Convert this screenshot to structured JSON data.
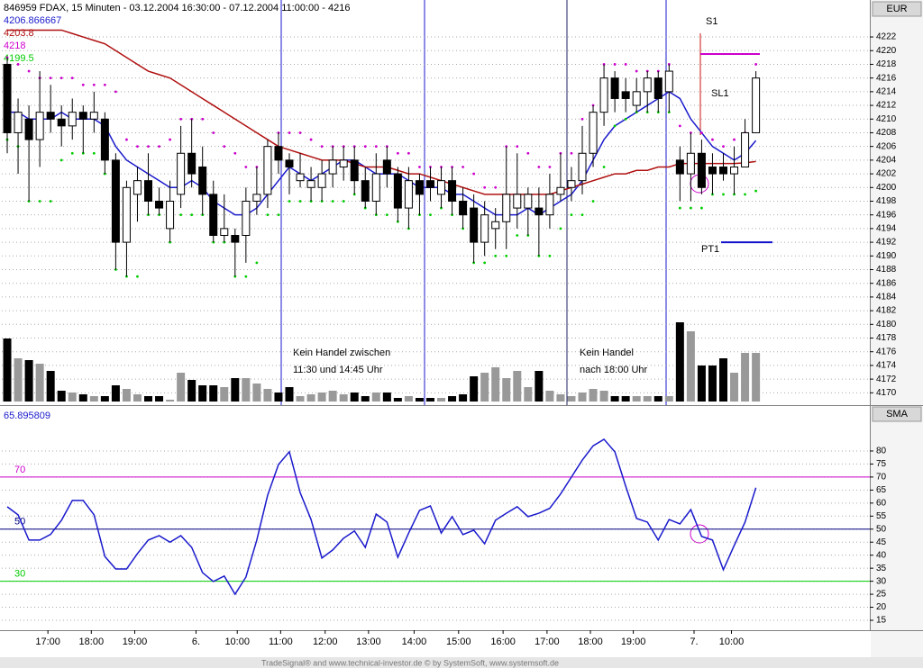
{
  "chart_data": [
    {
      "type": "candlestick",
      "title": "846959  FDAX, 15 Minuten - 03.12.2004 16:30:00 - 07.12.2004 11:00:00 - 4216",
      "y_axis_label": "EUR",
      "xlim": [
        -0.5,
        79.5
      ],
      "xticks": [
        {
          "value": 3.75,
          "label": "17:00"
        },
        {
          "value": 7.75,
          "label": "18:00"
        },
        {
          "value": 11.75,
          "label": "19:00"
        },
        {
          "value": 17.4,
          "label": "6."
        },
        {
          "value": 21.2,
          "label": "10:00"
        },
        {
          "value": 25.2,
          "label": "11:00"
        },
        {
          "value": 29.3,
          "label": "12:00"
        },
        {
          "value": 33.3,
          "label": "13:00"
        },
        {
          "value": 37.5,
          "label": "14:00"
        },
        {
          "value": 41.6,
          "label": "15:00"
        },
        {
          "value": 45.7,
          "label": "16:00"
        },
        {
          "value": 49.75,
          "label": "17:00"
        },
        {
          "value": 53.75,
          "label": "18:00"
        },
        {
          "value": 57.7,
          "label": "19:00"
        },
        {
          "value": 63.3,
          "label": "7."
        },
        {
          "value": 66.75,
          "label": "10:00"
        }
      ],
      "ylim": [
        4168.2,
        4227.4
      ],
      "yticks": [
        4170,
        4172,
        4174,
        4176,
        4178,
        4180,
        4182,
        4184,
        4186,
        4188,
        4190,
        4192,
        4194,
        4196,
        4198,
        4200,
        4202,
        4204,
        4206,
        4208,
        4210,
        4212,
        4214,
        4216,
        4218,
        4220,
        4222
      ],
      "grid": true,
      "open": [
        4218,
        4208,
        4210,
        4207,
        4211,
        4210,
        4209,
        4211,
        4210,
        4210,
        4204,
        4192,
        4199,
        4201,
        4198,
        4194,
        4199,
        4205,
        4203,
        4199,
        4193,
        4193,
        4193,
        4198,
        4199,
        4206,
        4204,
        4201,
        4200,
        4200,
        4202,
        4203,
        4204,
        4201,
        4198,
        4204,
        4202,
        4197,
        4201,
        4201,
        4199,
        4201,
        4198,
        4197,
        4192,
        4194,
        4195,
        4197,
        4197,
        4197,
        4196,
        4199,
        4200,
        4201,
        4205,
        4211,
        4216,
        4214,
        4212,
        4214,
        4216,
        4214,
        4204,
        4202,
        4205,
        4203,
        4203,
        4202,
        4203,
        4208
      ],
      "high": [
        4219,
        4213,
        4212,
        4217,
        4215,
        4212,
        4213,
        4212,
        4214,
        4211,
        4205,
        4201,
        4203,
        4205,
        4200,
        4201,
        4209,
        4210,
        4206,
        4201,
        4199,
        4194,
        4200,
        4203,
        4207,
        4208,
        4205,
        4205,
        4203,
        4204,
        4206,
        4206,
        4206,
        4203,
        4205,
        4206,
        4203,
        4203,
        4202,
        4203,
        4203,
        4203,
        4200,
        4199,
        4198,
        4197,
        4206,
        4205,
        4200,
        4200,
        4202,
        4205,
        4203,
        4209,
        4212,
        4218,
        4217,
        4216,
        4216,
        4217,
        4217,
        4218,
        4206,
        4208,
        4207,
        4205,
        4205,
        4206,
        4210,
        4217
      ],
      "low": [
        4205,
        4202,
        4198,
        4203,
        4208,
        4206,
        4207,
        4205,
        4208,
        4202,
        4188,
        4187,
        4195,
        4196,
        4196,
        4192,
        4197,
        4200,
        4196,
        4192,
        4192,
        4187,
        4189,
        4196,
        4197,
        4202,
        4199,
        4200,
        4198,
        4198,
        4200,
        4201,
        4199,
        4197,
        4196,
        4200,
        4195,
        4194,
        4196,
        4198,
        4197,
        4196,
        4194,
        4189,
        4190,
        4191,
        4191,
        4194,
        4193,
        4190,
        4194,
        4198,
        4198,
        4199,
        4203,
        4209,
        4211,
        4211,
        4211,
        4211,
        4211,
        4211,
        4198,
        4198,
        4199,
        4199,
        4201,
        4199,
        4203,
        4208
      ],
      "close": [
        4208,
        4211,
        4207,
        4211,
        4210,
        4209,
        4211,
        4210,
        4211,
        4204,
        4192,
        4200,
        4201,
        4198,
        4197,
        4198,
        4205,
        4202,
        4199,
        4193,
        4194,
        4192,
        4198,
        4199,
        4206,
        4204,
        4203,
        4202,
        4201,
        4202,
        4204,
        4204,
        4201,
        4198,
        4202,
        4202,
        4197,
        4201,
        4199,
        4200,
        4201,
        4198,
        4196,
        4192,
        4196,
        4195,
        4199,
        4199,
        4199,
        4196,
        4199,
        4200,
        4201,
        4205,
        4211,
        4216,
        4213,
        4213,
        4214,
        4216,
        4213,
        4217,
        4202,
        4205,
        4200,
        4202,
        4202,
        4203,
        4208,
        4216
      ],
      "up_color": "#ffffff",
      "down_color": "#000000",
      "volume": [
        70,
        48,
        46,
        42,
        34,
        12,
        10,
        8,
        6,
        6,
        18,
        14,
        8,
        6,
        6,
        2,
        32,
        24,
        18,
        18,
        16,
        26,
        26,
        20,
        14,
        10,
        16,
        6,
        8,
        10,
        12,
        8,
        10,
        6,
        10,
        10,
        4,
        6,
        4,
        4,
        4,
        6,
        8,
        28,
        32,
        38,
        26,
        34,
        16,
        34,
        12,
        8,
        6,
        10,
        14,
        12,
        6,
        6,
        6,
        6,
        6,
        6,
        88,
        78,
        40,
        40,
        48,
        32,
        54,
        54
      ],
      "vlim": [
        0,
        100
      ],
      "volume_up_color": "#999999",
      "volume_down_color": "#000000",
      "series": [
        {
          "color": "#1a1acc",
          "style": "line",
          "values": [
            4211,
            4211,
            4210,
            4210,
            4210,
            4211,
            4210,
            4210,
            4210,
            4209,
            4206,
            4204,
            4203,
            4202,
            4201,
            4200,
            4200,
            4201,
            4200,
            4198,
            4197,
            4196,
            4196,
            4197,
            4199,
            4201,
            4203,
            4202,
            4201,
            4202,
            4203,
            4204,
            4204,
            4203,
            4202,
            4202,
            4202,
            4201,
            4200,
            4200,
            4200,
            4199,
            4199,
            4198,
            4197,
            4196,
            4196,
            4196,
            4197,
            4196,
            4197,
            4198,
            4199,
            4201,
            4204,
            4207,
            4209,
            4210,
            4211,
            4212,
            4213,
            4214,
            4213,
            4210,
            4208,
            4206,
            4205,
            4204,
            4205,
            4206.866667
          ]
        },
        {
          "color": "#b01010",
          "style": "line",
          "values": [
            4223,
            4223,
            4223,
            4223,
            4223,
            4223,
            4222.5,
            4222,
            4221.5,
            4221,
            4220,
            4219,
            4218,
            4217,
            4216.5,
            4216,
            4215,
            4214,
            4213,
            4212,
            4211,
            4210,
            4209,
            4208,
            4207,
            4206,
            4205.5,
            4205,
            4204.5,
            4204,
            4204,
            4204,
            4203.5,
            4203,
            4203,
            4203,
            4202.5,
            4202,
            4202,
            4201.5,
            4201,
            4200.5,
            4200,
            4199.5,
            4199,
            4199,
            4199,
            4199,
            4199,
            4199,
            4199,
            4199.5,
            4200,
            4200.5,
            4201,
            4201.5,
            4202,
            4202,
            4202.5,
            4202.5,
            4203,
            4203,
            4203.5,
            4203.5,
            4203.5,
            4203.5,
            4203.5,
            4203.5,
            4203.6,
            4203.8
          ]
        },
        {
          "color": "#cc00cc",
          "style": "dots",
          "values": [
            4219,
            4218,
            4217,
            4216,
            4216,
            4216,
            4216,
            4215,
            4215,
            4215,
            4214,
            4207,
            4206,
            4206,
            4206,
            4207,
            4210,
            4210,
            4210,
            4208,
            4206,
            4205,
            4203,
            4203,
            4205,
            4208,
            4208,
            4208,
            4207,
            4206,
            4206,
            4206,
            4206,
            4206,
            4206,
            4206,
            4205,
            4205,
            4203,
            4203,
            4203,
            4203,
            4203,
            4202,
            4200,
            4200,
            4206,
            4206,
            4205,
            4203,
            4203,
            4205,
            4205,
            4210,
            4212,
            4218,
            4218,
            4218,
            4217,
            4217,
            4217,
            4218,
            4209,
            4208,
            4208,
            4207,
            4206,
            4207,
            4208,
            4218
          ]
        },
        {
          "color": "#00cc00",
          "style": "dots",
          "values": [
            4207,
            4206,
            4198,
            4198,
            4198,
            4204,
            4205,
            4205,
            4205,
            4202,
            4188,
            4187,
            4187,
            4196,
            4196,
            4192,
            4196,
            4196,
            4196,
            4192,
            4192,
            4187,
            4187,
            4189,
            4196,
            4196,
            4198,
            4198,
            4198,
            4198,
            4198,
            4198,
            4199,
            4197,
            4196,
            4196,
            4195,
            4194,
            4196,
            4196,
            4197,
            4196,
            4194,
            4189,
            4189,
            4190,
            4190,
            4193,
            4193,
            4190,
            4190,
            4194,
            4196,
            4196,
            4198,
            4203,
            4209,
            4210,
            4211,
            4211,
            4211,
            4211,
            4197,
            4197,
            4197,
            4199,
            4199,
            4199,
            4199,
            4199.5
          ]
        }
      ],
      "notes": [
        "Kein Handel zwischen",
        "11:30 und 14:45 Uhr",
        "Kein Handel",
        "nach 18:00 Uhr"
      ],
      "levels": [
        {
          "label": "S1",
          "value": 4219.5,
          "color": "#cc00cc"
        },
        {
          "label": "PT1",
          "value": 4192,
          "color": "#1010cc"
        }
      ],
      "marker_label": "SL1"
    },
    {
      "type": "line",
      "y_axis_label": "SMA",
      "xlim": [
        -0.5,
        79.5
      ],
      "ylim": [
        11.2,
        90.7
      ],
      "yticks": [
        15,
        20,
        25,
        30,
        35,
        40,
        45,
        50,
        55,
        60,
        65,
        70,
        75,
        80
      ],
      "grid": true,
      "series": [
        {
          "color": "#1a1acc",
          "values": [
            58.6,
            55.5,
            45.8,
            45.8,
            48,
            53.4,
            61,
            61,
            55.5,
            39.5,
            34.7,
            34.7,
            40.6,
            45.8,
            47.5,
            45,
            47.5,
            43,
            33.3,
            29.9,
            32,
            25,
            31.6,
            45.8,
            63,
            74.8,
            79.7,
            64,
            53.7,
            38.9,
            42,
            46.5,
            49.3,
            43,
            55.8,
            52.7,
            39.2,
            48.5,
            57.2,
            58.9,
            48.5,
            54.8,
            47.9,
            49.6,
            44.4,
            53.4,
            56.1,
            58.6,
            54.8,
            56.1,
            58,
            63.5,
            70,
            76.5,
            82,
            84.5,
            79.7,
            66.5,
            54.1,
            52.7,
            45.8,
            53.7,
            52,
            57.5,
            47.2,
            45.8,
            34.4,
            43.7,
            52.7,
            65.895809
          ]
        }
      ],
      "levels": [
        70,
        50,
        30
      ],
      "level_colors": [
        "#cc00cc",
        "#000080",
        "#00cc00"
      ]
    }
  ],
  "footer": "TradeSignal® and www.technical-investor.de © by SystemSoft, www.systemsoft.de"
}
